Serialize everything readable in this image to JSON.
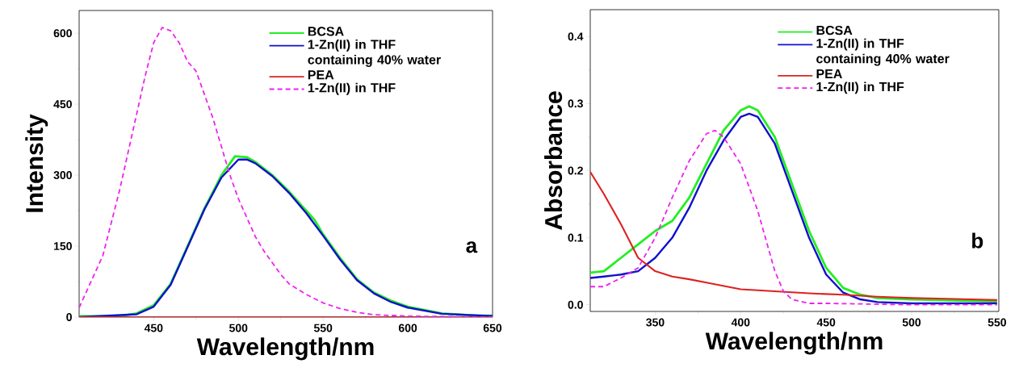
{
  "chart_data": [
    {
      "type": "line",
      "xlabel": "Wavelength/nm",
      "ylabel": "Intensity",
      "xlim": [
        406,
        650
      ],
      "ylim": [
        0,
        648
      ],
      "xticks": [
        450,
        500,
        550,
        600,
        650
      ],
      "yticks": [
        0,
        150,
        300,
        450,
        600
      ],
      "legend": "top right",
      "annotations": [
        "a"
      ],
      "series": [
        {
          "name": "BCSA",
          "color": "#22ee22",
          "line_style": "solid",
          "x": [
            406,
            430,
            440,
            450,
            460,
            470,
            480,
            490,
            498,
            505,
            510,
            520,
            530,
            540,
            545,
            550,
            560,
            570,
            580,
            590,
            600,
            620,
            640,
            650
          ],
          "values": [
            2,
            2,
            8,
            25,
            70,
            150,
            230,
            300,
            340,
            338,
            328,
            300,
            265,
            225,
            205,
            175,
            125,
            80,
            52,
            35,
            22,
            8,
            3,
            3
          ]
        },
        {
          "name": "1-Zn(II) in THF containing 40% water",
          "color": "#1010cc",
          "line_style": "solid",
          "x": [
            406,
            440,
            450,
            460,
            470,
            480,
            490,
            500,
            505,
            510,
            520,
            530,
            540,
            550,
            560,
            570,
            580,
            590,
            600,
            620,
            650
          ],
          "values": [
            0,
            6,
            22,
            68,
            148,
            228,
            295,
            333,
            333,
            325,
            298,
            262,
            220,
            172,
            122,
            78,
            50,
            32,
            20,
            7,
            2
          ]
        },
        {
          "name": "PEA",
          "color": "#dd2222",
          "line_style": "solid",
          "x": [
            406,
            650
          ],
          "values": [
            0,
            0
          ]
        },
        {
          "name": "1-Zn(II) in THF",
          "color": "#ee22ee",
          "line_style": "dashed",
          "x": [
            406,
            420,
            430,
            440,
            445,
            450,
            455,
            460,
            465,
            470,
            475,
            480,
            485,
            490,
            495,
            500,
            505,
            510,
            515,
            520,
            525,
            530,
            540,
            550,
            560,
            570,
            580,
            600,
            650
          ],
          "values": [
            20,
            130,
            270,
            430,
            510,
            580,
            612,
            605,
            580,
            540,
            520,
            470,
            420,
            360,
            300,
            250,
            210,
            170,
            140,
            115,
            90,
            70,
            48,
            30,
            18,
            10,
            5,
            2,
            0
          ]
        }
      ]
    },
    {
      "type": "line",
      "xlabel": "Wavelength/nm",
      "ylabel": "Absorbance",
      "xlim": [
        312,
        551
      ],
      "ylim": [
        -0.01,
        0.44
      ],
      "xticks": [
        350,
        400,
        450,
        500,
        550
      ],
      "yticks": [
        {
          "value": 0,
          "label": "0.0"
        },
        0.1,
        0.2,
        0.3,
        0.4
      ],
      "legend": "top right",
      "annotations": [
        "b"
      ],
      "series": [
        {
          "name": "BCSA",
          "color": "#22ee22",
          "line_style": "solid",
          "x": [
            312,
            320,
            330,
            340,
            350,
            360,
            370,
            380,
            390,
            400,
            405,
            410,
            420,
            430,
            440,
            450,
            460,
            470,
            480,
            500,
            550
          ],
          "values": [
            0.048,
            0.05,
            0.07,
            0.09,
            0.11,
            0.125,
            0.16,
            0.21,
            0.26,
            0.29,
            0.296,
            0.29,
            0.25,
            0.18,
            0.11,
            0.055,
            0.025,
            0.015,
            0.01,
            0.008,
            0.005
          ]
        },
        {
          "name": "1-Zn(II) in THF containing 40% water",
          "color": "#1010cc",
          "line_style": "solid",
          "x": [
            312,
            320,
            330,
            340,
            350,
            360,
            370,
            380,
            390,
            400,
            405,
            410,
            420,
            430,
            440,
            450,
            460,
            470,
            480,
            500,
            550
          ],
          "values": [
            0.04,
            0.042,
            0.045,
            0.05,
            0.07,
            0.1,
            0.145,
            0.2,
            0.245,
            0.28,
            0.285,
            0.28,
            0.24,
            0.17,
            0.1,
            0.045,
            0.018,
            0.008,
            0.004,
            0.002,
            0.002
          ]
        },
        {
          "name": "PEA",
          "color": "#dd2222",
          "line_style": "solid",
          "x": [
            312,
            320,
            330,
            340,
            350,
            360,
            370,
            380,
            390,
            400,
            420,
            440,
            460,
            480,
            500,
            520,
            550
          ],
          "values": [
            0.198,
            0.165,
            0.12,
            0.07,
            0.05,
            0.042,
            0.038,
            0.033,
            0.028,
            0.023,
            0.02,
            0.017,
            0.015,
            0.012,
            0.01,
            0.009,
            0.007
          ]
        },
        {
          "name": "1-Zn(II) in THF",
          "color": "#ee22ee",
          "line_style": "dashed",
          "x": [
            312,
            320,
            330,
            340,
            350,
            360,
            370,
            380,
            385,
            390,
            400,
            410,
            420,
            425,
            430,
            440,
            450,
            500,
            550
          ],
          "values": [
            0.027,
            0.027,
            0.04,
            0.055,
            0.1,
            0.16,
            0.215,
            0.255,
            0.26,
            0.25,
            0.21,
            0.14,
            0.05,
            0.02,
            0.008,
            0.002,
            0.002,
            0.0,
            0.0
          ]
        }
      ]
    }
  ]
}
